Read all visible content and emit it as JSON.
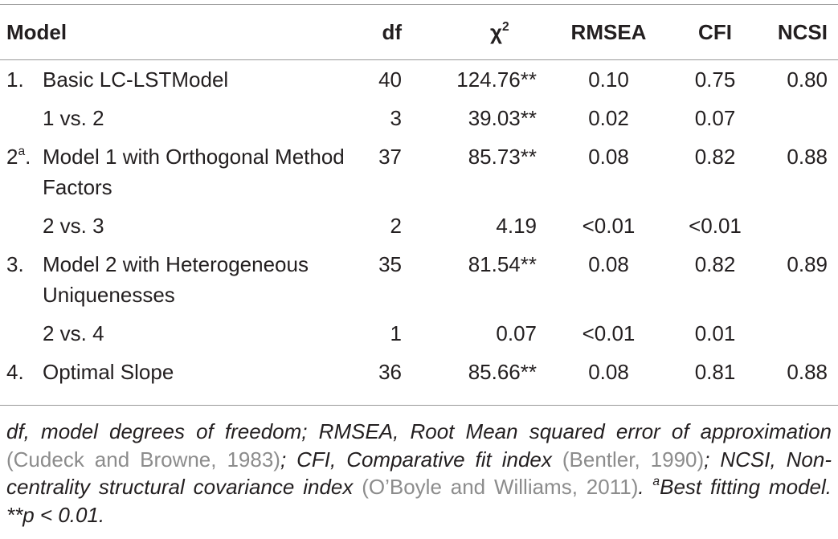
{
  "table": {
    "columns": [
      {
        "text": "Model"
      },
      {
        "text": "df"
      },
      {
        "text": "χ",
        "sup": "2"
      },
      {
        "text": "RMSEA"
      },
      {
        "text": "CFI"
      },
      {
        "text": "NCSI"
      }
    ],
    "rows": [
      {
        "kind": "model",
        "number": "1.",
        "model": "Basic LC-LSTModel",
        "cells": [
          "40",
          "124.76**",
          "0.10",
          "0.75",
          "0.80"
        ]
      },
      {
        "kind": "comparison",
        "model": "1 vs. 2",
        "cells": [
          "3",
          "39.03**",
          "0.02",
          "0.07",
          null
        ]
      },
      {
        "kind": "model",
        "number": "2",
        "number_sup": "a",
        "number_end": ".",
        "model": "Model 1 with Orthogonal Method Factors",
        "cells": [
          "37",
          "85.73**",
          "0.08",
          "0.82",
          "0.88"
        ]
      },
      {
        "kind": "comparison",
        "model": "2 vs. 3",
        "cells": [
          "2",
          "4.19",
          "<0.01",
          "<0.01",
          null
        ]
      },
      {
        "kind": "model",
        "number": "3.",
        "model": "Model 2 with Heterogeneous Uniquenesses",
        "cells": [
          "35",
          "81.54**",
          "0.08",
          "0.82",
          "0.89"
        ]
      },
      {
        "kind": "comparison",
        "model": "2 vs. 4",
        "cells": [
          "1",
          "0.07",
          "<0.01",
          "0.01",
          null
        ]
      },
      {
        "kind": "model",
        "number": "4.",
        "model": "Optimal Slope",
        "cells": [
          "36",
          "85.66**",
          "0.08",
          "0.81",
          "0.88"
        ]
      }
    ]
  },
  "footnote": [
    {
      "style": "text",
      "text": "df, model degrees of freedom; RMSEA, Root Mean squared error of approximation "
    },
    {
      "style": "cite",
      "text": "(Cudeck and Browne, 1983)"
    },
    {
      "style": "text",
      "text": "; CFI, Comparative fit index "
    },
    {
      "style": "cite",
      "text": "(Bentler, 1990)"
    },
    {
      "style": "text",
      "text": "; NCSI, Non-centrality structural covariance index "
    },
    {
      "style": "cite",
      "text": "(O’Boyle and Williams, 2011)"
    },
    {
      "style": "text",
      "text": ". "
    },
    {
      "style": "sup",
      "text": "a"
    },
    {
      "style": "text",
      "text": "Best fitting model. **p < 0.01."
    }
  ]
}
